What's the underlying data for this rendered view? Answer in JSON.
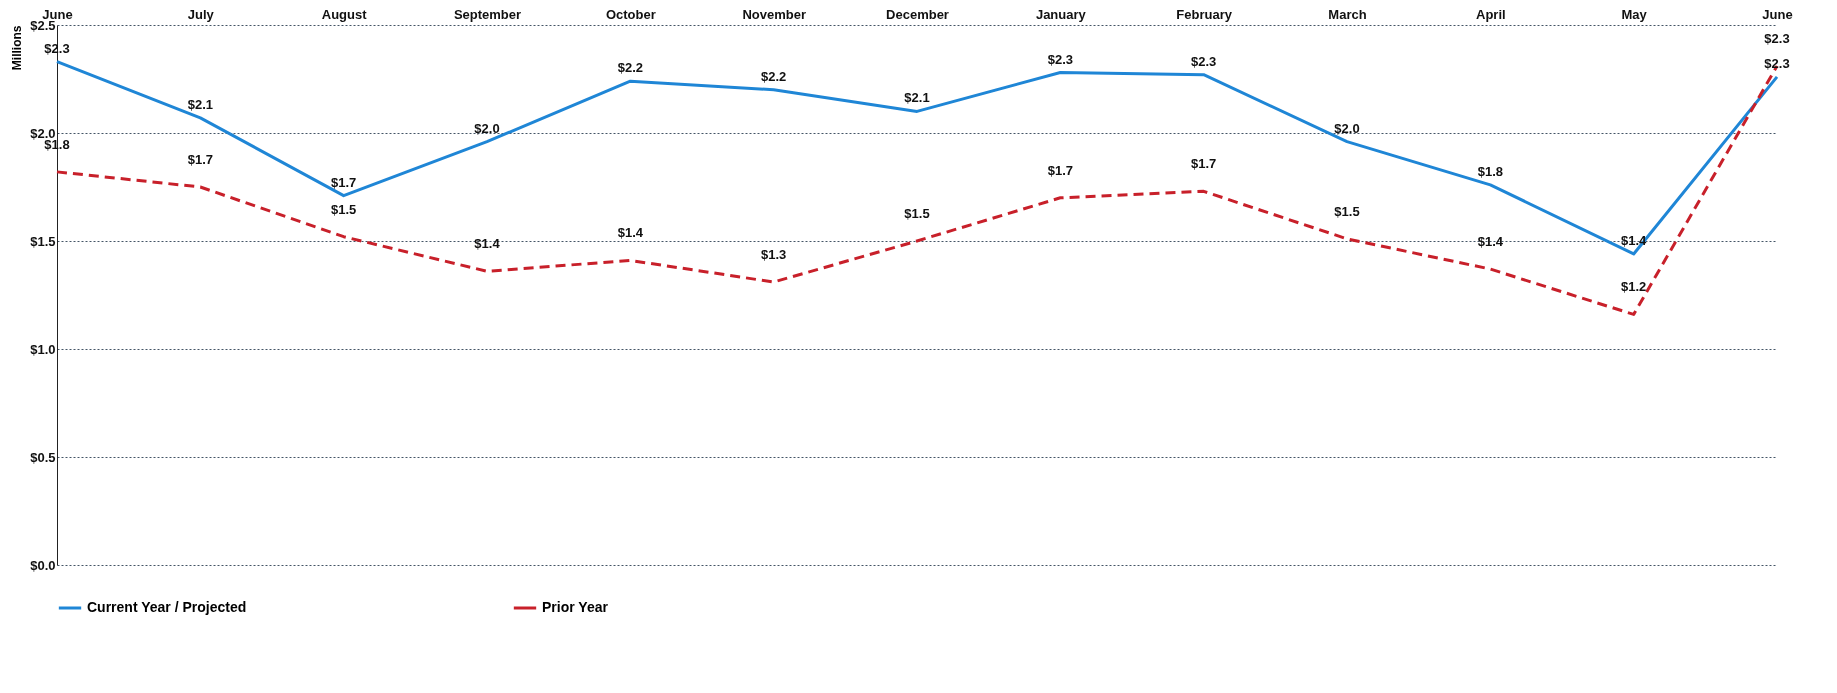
{
  "chart_data": {
    "type": "line",
    "ylabel": "Millions",
    "categories": [
      "June",
      "July",
      "August",
      "September",
      "October",
      "November",
      "December",
      "January",
      "February",
      "March",
      "April",
      "May",
      "June"
    ],
    "series": [
      {
        "name": "Current Year / Projected",
        "color": "#1f86d6",
        "line_style": "solid",
        "values": [
          2.33,
          2.07,
          1.71,
          1.96,
          2.24,
          2.2,
          2.1,
          2.28,
          2.27,
          1.96,
          1.76,
          1.44,
          2.26
        ],
        "value_labels": [
          "$2.3",
          "$2.1",
          "$1.7",
          "$2.0",
          "$2.2",
          "$2.2",
          "$2.1",
          "$2.3",
          "$2.3",
          "$2.0",
          "$1.8",
          "$1.4",
          "$2.3"
        ]
      },
      {
        "name": "Prior Year",
        "color": "#c8202a",
        "line_style": "dashed",
        "values": [
          1.82,
          1.75,
          1.52,
          1.36,
          1.41,
          1.31,
          1.5,
          1.7,
          1.73,
          1.51,
          1.37,
          1.16,
          2.31
        ],
        "value_labels": [
          "$1.8",
          "$1.7",
          "$1.5",
          "$1.4",
          "$1.4",
          "$1.3",
          "$1.5",
          "$1.7",
          "$1.7",
          "$1.5",
          "$1.4",
          "$1.2",
          "$2.3"
        ]
      }
    ],
    "ylim": [
      0,
      2.5
    ],
    "yticks": [
      {
        "value": 0,
        "label": "$0.0"
      },
      {
        "value": 0.5,
        "label": "$0.5"
      },
      {
        "value": 1,
        "label": "$1.0"
      },
      {
        "value": 1.5,
        "label": "$1.5"
      },
      {
        "value": 2,
        "label": "$2.0"
      },
      {
        "value": 2.5,
        "label": "$2.5"
      }
    ],
    "grid": "y",
    "legend": "bottom",
    "marker": "none"
  }
}
